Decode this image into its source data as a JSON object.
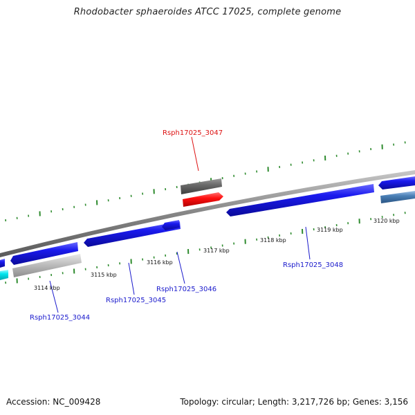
{
  "title": "Rhodobacter sphaeroides ATCC 17025, complete genome",
  "footer": {
    "accession": "Accession: NC_009428",
    "stats": "Topology: circular; Length: 3,217,726 bp; Genes: 3,156"
  },
  "colors": {
    "backbone": "#8a8a8a",
    "tick": "#2e8b2e",
    "gene_blue": "#1a1aee",
    "gene_grey": "#c0c0c0",
    "gene_darkgrey": "#6a6a6a",
    "gene_red": "#ff1010",
    "gene_steelblue": "#4a7fb5",
    "gene_cyan": "#00e5ee",
    "label_blue": "#1a1acc",
    "label_red": "#dd1111"
  },
  "scale": {
    "unit": "kbp",
    "tick_labels": [
      "3114 kbp",
      "3115 kbp",
      "3116 kbp",
      "3117 kbp",
      "3118 kbp",
      "3119 kbp",
      "3120 kbp"
    ]
  },
  "genes": [
    {
      "label": "Rsph17025_3044",
      "color": "label_blue"
    },
    {
      "label": "Rsph17025_3045",
      "color": "label_blue"
    },
    {
      "label": "Rsph17025_3046",
      "color": "label_blue"
    },
    {
      "label": "Rsph17025_3047",
      "color": "label_red"
    },
    {
      "label": "Rsph17025_3048",
      "color": "label_blue"
    }
  ]
}
